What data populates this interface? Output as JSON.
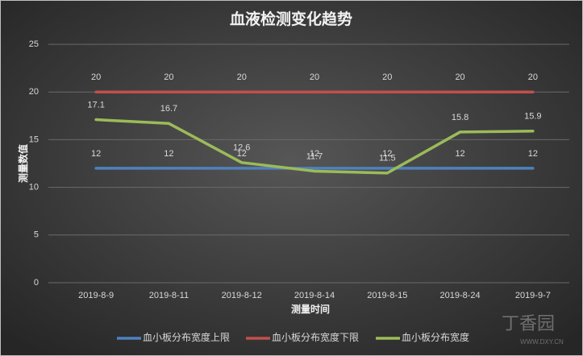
{
  "chart_data": {
    "type": "line",
    "title": "血液检测变化趋势",
    "x_label": "测量时间",
    "y_label": "测量数值",
    "categories": [
      "2019-8-9",
      "2019-8-11",
      "2019-8-12",
      "2019-8-14",
      "2019-8-15",
      "2019-8-24",
      "2019-9-7"
    ],
    "series": [
      {
        "name": "血小板分布宽度上限",
        "color": "#4f81bd",
        "values": [
          12,
          12,
          12,
          12,
          12,
          12,
          12
        ]
      },
      {
        "name": "血小板分布宽度下限",
        "color": "#c0504d",
        "values": [
          20,
          20,
          20,
          20,
          20,
          20,
          20
        ]
      },
      {
        "name": "血小板分布宽度",
        "color": "#9bbb59",
        "values": [
          17.1,
          16.7,
          12.6,
          11.7,
          11.5,
          15.8,
          15.9
        ]
      }
    ],
    "ylim": [
      0,
      25
    ],
    "yticks": [
      0,
      5,
      10,
      15,
      20,
      25
    ],
    "grid": true,
    "legend": "bottom",
    "watermark": "丁香园",
    "watermark_url": "WWW.DXY.CN"
  }
}
